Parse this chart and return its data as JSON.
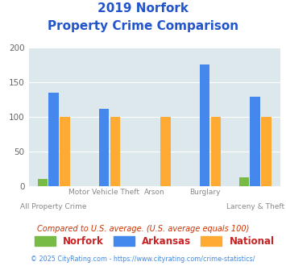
{
  "title_line1": "2019 Norfork",
  "title_line2": "Property Crime Comparison",
  "groups": [
    {
      "norfork": 10,
      "arkansas": 135,
      "national": 100
    },
    {
      "norfork": 0,
      "arkansas": 112,
      "national": 100
    },
    {
      "norfork": 0,
      "arkansas": 0,
      "national": 100
    },
    {
      "norfork": 0,
      "arkansas": 176,
      "national": 100
    },
    {
      "norfork": 13,
      "arkansas": 129,
      "national": 100
    }
  ],
  "x_label_top": [
    "",
    "Motor Vehicle Theft",
    "Arson",
    "Burglary",
    ""
  ],
  "x_label_bot": [
    "All Property Crime",
    "",
    "",
    "",
    "Larceny & Theft"
  ],
  "norfork_color": "#77bb44",
  "arkansas_color": "#4488ee",
  "national_color": "#ffaa33",
  "ylim": [
    0,
    200
  ],
  "yticks": [
    0,
    50,
    100,
    150,
    200
  ],
  "background_color": "#dce8ec",
  "title_color": "#2255cc",
  "note_text": "Compared to U.S. average. (U.S. average equals 100)",
  "note_color": "#cc3300",
  "footer_text": "© 2025 CityRating.com - https://www.cityrating.com/crime-statistics/",
  "footer_color": "#4488dd",
  "legend_labels": [
    "Norfork",
    "Arkansas",
    "National"
  ],
  "legend_text_color": "#cc2222"
}
